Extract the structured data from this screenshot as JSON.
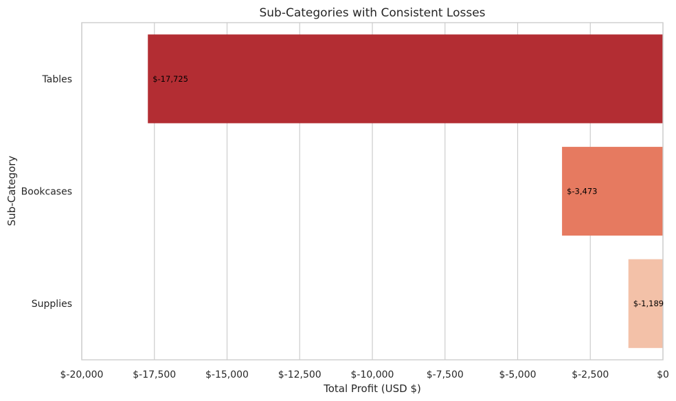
{
  "chart_data": {
    "type": "bar",
    "orientation": "horizontal",
    "title": "Sub-Categories with Consistent Losses",
    "xlabel": "Total Profit (USD $)",
    "ylabel": "Sub-Category",
    "categories": [
      "Tables",
      "Bookcases",
      "Supplies"
    ],
    "values": [
      -17725,
      -3473,
      -1189
    ],
    "value_labels": [
      "$-17,725",
      "$-3,473",
      "$-1,189"
    ],
    "colors": [
      "#b32d33",
      "#e67a60",
      "#f3c1a8"
    ],
    "xlim": [
      -20000,
      0
    ],
    "xticks": [
      -20000,
      -17500,
      -15000,
      -12500,
      -10000,
      -7500,
      -5000,
      -2500,
      0
    ],
    "xtick_labels": [
      "$-20,000",
      "$-17,500",
      "$-15,000",
      "$-12,500",
      "$-10,000",
      "$-7,500",
      "$-5,000",
      "$-2,500",
      "$0"
    ],
    "grid": "vertical",
    "grid_color": "#cccccc",
    "legend": "none"
  }
}
